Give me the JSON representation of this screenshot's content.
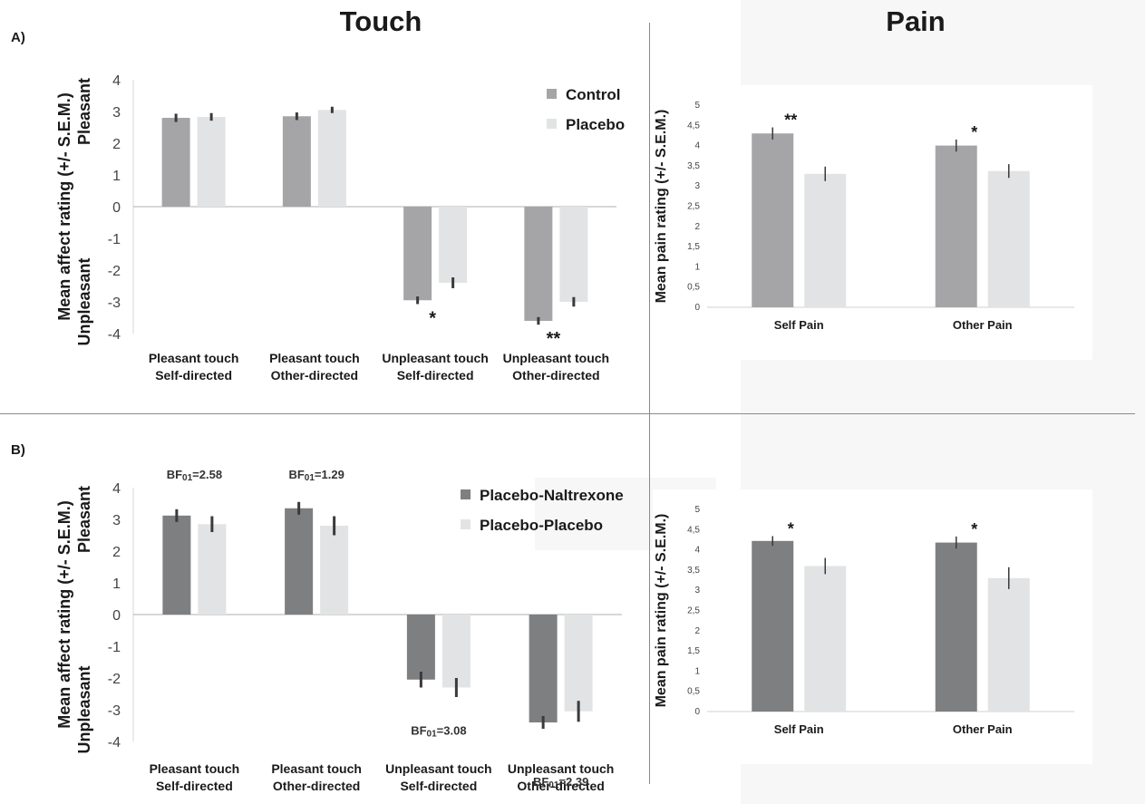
{
  "headers": {
    "touch": "Touch",
    "pain": "Pain"
  },
  "panel_labels": {
    "a": "A)",
    "b": "B)"
  },
  "chart_data": [
    {
      "type": "bar",
      "ylabel": "Mean affect rating (+/- S.E.M.)",
      "ylabel_top": "Pleasant",
      "ylabel_bottom": "Unpleasant",
      "ylim": [
        -4,
        4
      ],
      "yticks": [
        "4",
        "3",
        "2",
        "1",
        "0",
        "-1",
        "-2",
        "-3",
        "-4"
      ],
      "legend": [
        "Control",
        "Placebo"
      ],
      "legend_position": "top-right",
      "colors": [
        "#a5a5a7",
        "#e2e3e4"
      ],
      "categories": [
        {
          "line1": "Pleasant touch",
          "line2": "Self-directed"
        },
        {
          "line1": "Pleasant touch",
          "line2": "Other-directed"
        },
        {
          "line1": "Unpleasant touch",
          "line2": "Self-directed"
        },
        {
          "line1": "Unpleasant touch",
          "line2": "Other-directed"
        }
      ],
      "series": [
        {
          "name": "Control",
          "values": [
            2.8,
            2.85,
            -2.95,
            -3.6
          ],
          "sem": [
            0.13,
            0.12,
            0.12,
            0.12
          ]
        },
        {
          "name": "Placebo",
          "values": [
            2.83,
            3.05,
            -2.4,
            -3.0
          ],
          "sem": [
            0.12,
            0.1,
            0.17,
            0.15
          ]
        }
      ],
      "annotations": [
        {
          "category": 2,
          "text": "*"
        },
        {
          "category": 3,
          "text": "**"
        }
      ]
    },
    {
      "type": "bar",
      "ylabel": "Mean pain rating (+/- S.E.M.)",
      "ylim": [
        0,
        5
      ],
      "yticks": [
        "5",
        "4,5",
        "4",
        "3,5",
        "3",
        "2,5",
        "2",
        "1,5",
        "1",
        "0,5",
        "0"
      ],
      "colors": [
        "#a5a5a7",
        "#e2e3e4"
      ],
      "categories": [
        "Self Pain",
        "Other Pain"
      ],
      "series": [
        {
          "name": "Control",
          "values": [
            4.3,
            4.0
          ],
          "sem": [
            0.15,
            0.15
          ]
        },
        {
          "name": "Placebo",
          "values": [
            3.3,
            3.37
          ],
          "sem": [
            0.18,
            0.17
          ]
        }
      ],
      "annotations": [
        {
          "category": 0,
          "text": "**"
        },
        {
          "category": 1,
          "text": "*"
        }
      ]
    },
    {
      "type": "bar",
      "ylabel": "Mean affect rating (+/- S.E.M.)",
      "ylabel_top": "Pleasant",
      "ylabel_bottom": "Unpleasant",
      "ylim": [
        -4,
        4
      ],
      "yticks": [
        "4",
        "3",
        "2",
        "1",
        "0",
        "-1",
        "-2",
        "-3",
        "-4"
      ],
      "legend": [
        "Placebo-Naltrexone",
        "Placebo-Placebo"
      ],
      "legend_position": "top-right",
      "colors": [
        "#7e7f81",
        "#e2e3e4"
      ],
      "categories": [
        {
          "line1": "Pleasant touch",
          "line2": "Self-directed"
        },
        {
          "line1": "Pleasant touch",
          "line2": "Other-directed"
        },
        {
          "line1": "Unpleasant touch",
          "line2": "Self-directed"
        },
        {
          "line1": "Unpleasant touch",
          "line2": "Other-directed"
        }
      ],
      "series": [
        {
          "name": "Placebo-Naltrexone",
          "values": [
            3.12,
            3.35,
            -2.05,
            -3.4
          ],
          "sem": [
            0.2,
            0.2,
            0.25,
            0.2
          ]
        },
        {
          "name": "Placebo-Placebo",
          "values": [
            2.85,
            2.8,
            -2.3,
            -3.05
          ],
          "sem": [
            0.25,
            0.3,
            0.3,
            0.33
          ]
        }
      ],
      "annotations": [
        {
          "category": 0,
          "bf": "01",
          "value": "=2.58",
          "position": "above"
        },
        {
          "category": 1,
          "bf": "01",
          "value": "=1.29",
          "position": "above"
        },
        {
          "category": 2,
          "bf": "01",
          "value": "=3.08",
          "position": "below"
        },
        {
          "category": 3,
          "bf": "01",
          "value": "=2.39",
          "position": "below"
        }
      ]
    },
    {
      "type": "bar",
      "ylabel": "Mean pain rating (+/- S.E.M.)",
      "ylim": [
        0,
        5
      ],
      "yticks": [
        "5",
        "4,5",
        "4",
        "3,5",
        "3",
        "2,5",
        "2",
        "1,5",
        "1",
        "0,5",
        "0"
      ],
      "colors": [
        "#7e7f81",
        "#e2e3e4"
      ],
      "categories": [
        "Self Pain",
        "Other Pain"
      ],
      "series": [
        {
          "name": "Placebo-Naltrexone",
          "values": [
            4.22,
            4.18
          ],
          "sem": [
            0.12,
            0.15
          ]
        },
        {
          "name": "Placebo-Placebo",
          "values": [
            3.6,
            3.3
          ],
          "sem": [
            0.2,
            0.27
          ]
        }
      ],
      "annotations": [
        {
          "category": 0,
          "text": "*"
        },
        {
          "category": 1,
          "text": "*"
        }
      ]
    }
  ]
}
